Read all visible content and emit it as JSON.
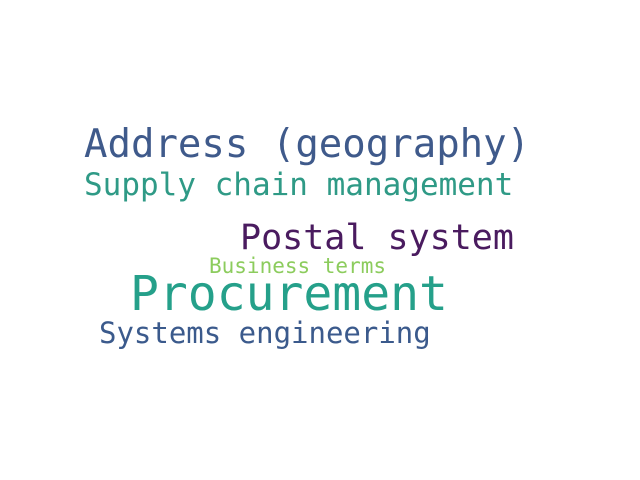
{
  "word_cloud": {
    "words": [
      {
        "text": "Address (geography)",
        "color": "#3f5a8b",
        "relative_size": "large"
      },
      {
        "text": "Supply chain management",
        "color": "#2f9a86",
        "relative_size": "medium"
      },
      {
        "text": "Postal system",
        "color": "#4a1b5f",
        "relative_size": "medium-large"
      },
      {
        "text": "Business terms",
        "color": "#8ccc5d",
        "relative_size": "small"
      },
      {
        "text": "Procurement",
        "color": "#25a08a",
        "relative_size": "largest"
      },
      {
        "text": "Systems engineering",
        "color": "#3b5a8c",
        "relative_size": "medium"
      }
    ],
    "background_color": "#ffffff"
  }
}
